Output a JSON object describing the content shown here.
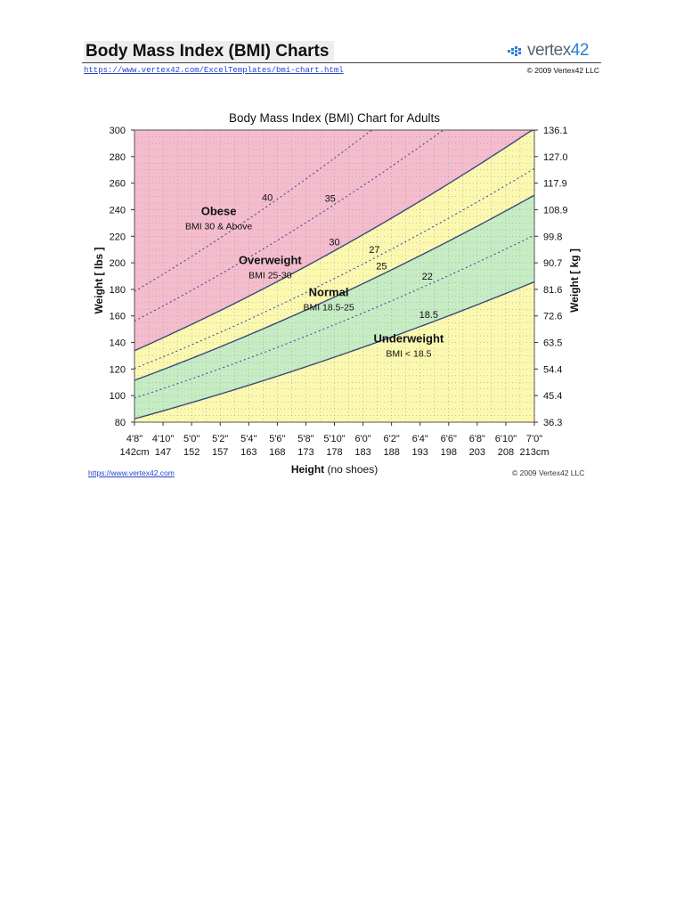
{
  "header": {
    "title": "Body Mass Index (BMI) Charts",
    "url": "https://www.vertex42.com/ExcelTemplates/bmi-chart.html",
    "copyright": "© 2009 Vertex42 LLC",
    "logo_text": "vertex",
    "logo_number": "42"
  },
  "footer": {
    "url": "https://www.vertex42.com",
    "copyright": "© 2009 Vertex42 LLC"
  },
  "colors": {
    "obese": "#f4bccd",
    "overweight": "#fbf8b0",
    "normal": "#c6ecc4",
    "underweight": "#fbf8b0",
    "curve": "#3a4a7a",
    "dashed": "#3a3aa0",
    "grid_dot": "#a0a0a0"
  },
  "chart_data": {
    "type": "area",
    "title": "Body Mass Index (BMI) Chart for Adults",
    "xlabel_bold": "Height",
    "xlabel_rest": " (no shoes)",
    "ylabel_left": "Weight [ lbs ]",
    "ylabel_right": "Weight [ kg ]",
    "x_range_inches": [
      56,
      84
    ],
    "ylim": [
      80,
      300
    ],
    "x_ticks_inches": [
      56,
      58,
      60,
      62,
      64,
      66,
      68,
      70,
      72,
      74,
      76,
      78,
      80,
      82,
      84
    ],
    "x_tick_labels_ft": [
      "4'8\"",
      "4'10\"",
      "5'0\"",
      "5'2\"",
      "5'4\"",
      "5'6\"",
      "5'8\"",
      "5'10\"",
      "6'0\"",
      "6'2\"",
      "6'4\"",
      "6'6\"",
      "6'8\"",
      "6'10\"",
      "7'0\""
    ],
    "x_tick_labels_cm": [
      "142cm",
      "147",
      "152",
      "157",
      "163",
      "168",
      "173",
      "178",
      "183",
      "188",
      "193",
      "198",
      "203",
      "208",
      "213cm"
    ],
    "y_ticks_left": [
      "80",
      "100",
      "120",
      "140",
      "160",
      "180",
      "200",
      "220",
      "240",
      "260",
      "280",
      "300"
    ],
    "y_ticks_right": [
      "36.3",
      "45.4",
      "54.4",
      "63.5",
      "72.6",
      "81.6",
      "90.7",
      "99.8",
      "108.9",
      "117.9",
      "127.0",
      "136.1"
    ],
    "solid_curves_bmi": [
      18.5,
      25,
      30
    ],
    "dashed_curves_bmi": [
      22,
      27,
      35,
      40
    ],
    "curve_labels": [
      {
        "bmi": 40,
        "text": "40",
        "x_in": 65.3
      },
      {
        "bmi": 35,
        "text": "35",
        "x_in": 69.7
      },
      {
        "bmi": 30,
        "text": "30",
        "x_in": 70.0
      },
      {
        "bmi": 27,
        "text": "27",
        "x_in": 72.8
      },
      {
        "bmi": 25,
        "text": "25",
        "x_in": 73.3
      },
      {
        "bmi": 22,
        "text": "22",
        "x_in": 76.5
      },
      {
        "bmi": 18.5,
        "text": "18.5",
        "x_in": 76.6
      }
    ],
    "regions": [
      {
        "name": "Obese",
        "desc": "BMI 30 & Above",
        "x_in": 61.9,
        "y_lb": 236
      },
      {
        "name": "Overweight",
        "desc": "BMI 25-30",
        "x_in": 65.5,
        "y_lb": 199
      },
      {
        "name": "Normal",
        "desc": "BMI 18.5-25",
        "x_in": 69.6,
        "y_lb": 175
      },
      {
        "name": "Underweight",
        "desc": "BMI < 18.5",
        "x_in": 75.2,
        "y_lb": 140
      }
    ]
  }
}
